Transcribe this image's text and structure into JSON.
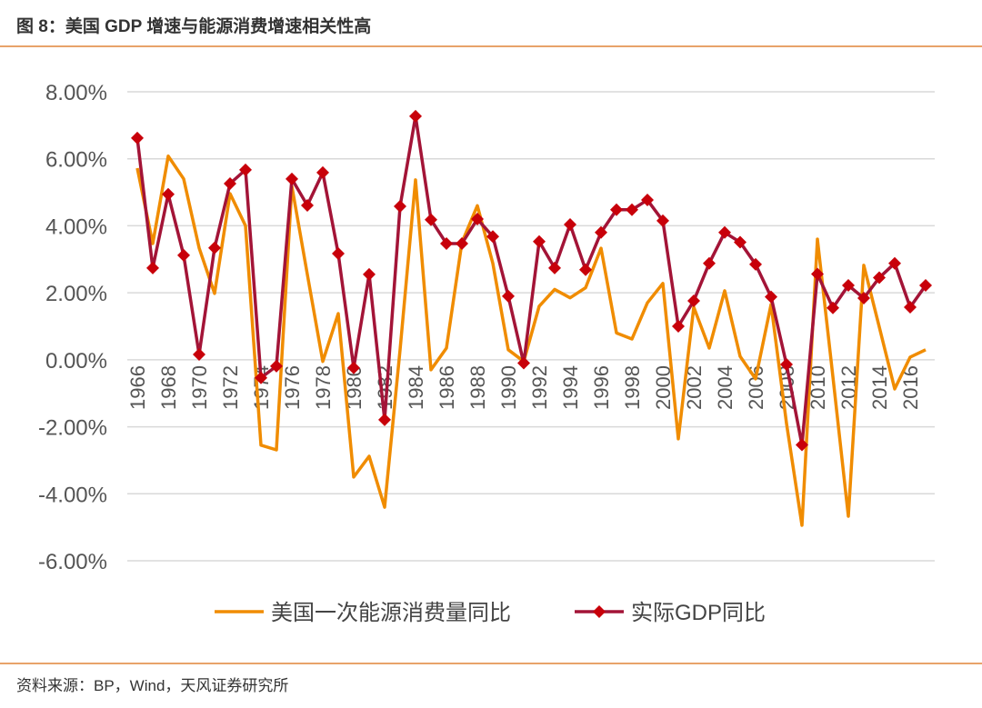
{
  "header": {
    "title": "图 8：美国 GDP 增速与能源消费增速相关性高"
  },
  "footer": {
    "source": "资料来源：BP，Wind，天风证券研究所"
  },
  "colors": {
    "energy": "#f08c00",
    "gdp": "#a31437",
    "gdp_marker": "#c8000a",
    "rule": "#e8a36a",
    "grid": "#d9d9d9"
  },
  "chart_data": {
    "type": "line",
    "ylim": [
      -6,
      8
    ],
    "yticks": [
      -6,
      -4,
      -2,
      0,
      2,
      4,
      6,
      8
    ],
    "ytick_labels": [
      "-6.00%",
      "-4.00%",
      "-2.00%",
      "0.00%",
      "2.00%",
      "4.00%",
      "6.00%",
      "8.00%"
    ],
    "x": [
      1966,
      1967,
      1968,
      1969,
      1970,
      1971,
      1972,
      1973,
      1974,
      1975,
      1976,
      1977,
      1978,
      1979,
      1980,
      1981,
      1982,
      1983,
      1984,
      1985,
      1986,
      1987,
      1988,
      1989,
      1990,
      1991,
      1992,
      1993,
      1994,
      1995,
      1996,
      1997,
      1998,
      1999,
      2000,
      2001,
      2002,
      2003,
      2004,
      2005,
      2006,
      2007,
      2008,
      2009,
      2010,
      2011,
      2012,
      2013,
      2014,
      2015,
      2016,
      2017
    ],
    "xtick_labels": [
      "1966",
      "1968",
      "1970",
      "1972",
      "1974",
      "1976",
      "1978",
      "1980",
      "1982",
      "1984",
      "1986",
      "1988",
      "1990",
      "1992",
      "1994",
      "1996",
      "1998",
      "2000",
      "2002",
      "2004",
      "2006",
      "2008",
      "2010",
      "2012",
      "2014",
      "2016"
    ],
    "grid": true,
    "legend_placement": "bottom",
    "series": [
      {
        "name": "美国一次能源消费量同比",
        "marker": "none",
        "values": [
          5.72,
          3.47,
          6.08,
          5.4,
          3.34,
          1.98,
          4.96,
          4.0,
          -2.55,
          -2.69,
          5.18,
          2.55,
          -0.05,
          1.38,
          -3.5,
          -2.88,
          -4.4,
          0.3,
          5.37,
          -0.3,
          0.35,
          3.5,
          4.6,
          2.88,
          0.3,
          -0.05,
          1.6,
          2.1,
          1.85,
          2.15,
          3.33,
          0.8,
          0.62,
          1.7,
          2.28,
          -2.36,
          1.57,
          0.35,
          2.06,
          0.1,
          -0.57,
          1.65,
          -1.9,
          -4.94,
          3.6,
          -0.5,
          -4.67,
          2.82,
          0.98,
          -0.87,
          0.08,
          0.3
        ]
      },
      {
        "name": "实际GDP同比",
        "marker": "diamond",
        "values": [
          6.62,
          2.74,
          4.94,
          3.12,
          0.16,
          3.34,
          5.26,
          5.67,
          -0.54,
          -0.19,
          5.4,
          4.61,
          5.59,
          3.17,
          -0.24,
          2.55,
          -1.79,
          4.58,
          7.27,
          4.18,
          3.47,
          3.47,
          4.2,
          3.68,
          1.9,
          -0.1,
          3.53,
          2.74,
          4.04,
          2.69,
          3.8,
          4.48,
          4.48,
          4.77,
          4.15,
          1.0,
          1.76,
          2.88,
          3.8,
          3.51,
          2.85,
          1.88,
          -0.14,
          -2.54,
          2.56,
          1.55,
          2.22,
          1.84,
          2.45,
          2.88,
          1.57,
          2.22
        ]
      }
    ]
  }
}
